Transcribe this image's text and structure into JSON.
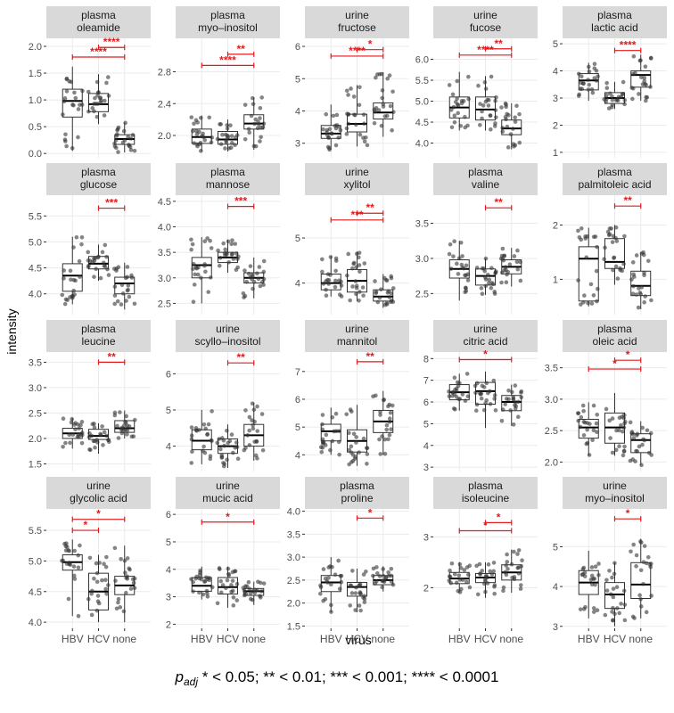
{
  "figure": {
    "ylabel": "intensity",
    "xlabel": "virus",
    "groups": [
      "HBV",
      "HCV",
      "none"
    ],
    "caption": {
      "p": "p",
      "sub": "adj",
      "text": " * < 0.05; ** < 0.01; *** < 0.001; **** < 0.0001"
    }
  },
  "colors": {
    "panel_bg": "#ffffff",
    "strip_bg": "#d9d9d9",
    "grid": "#ebebeb",
    "point": "#333333",
    "sig": "#e31a1c",
    "axis_text": "#4d4d4d"
  },
  "chart_data": [
    {
      "type": "box",
      "title": [
        "plasma",
        "oleamide"
      ],
      "ylim": [
        -0.08,
        2.15
      ],
      "yticks": [
        0.0,
        0.5,
        1.0,
        1.5,
        2.0
      ],
      "ticklabels": [
        "0.0",
        "0.5",
        "1.0",
        "1.5",
        "2.0"
      ],
      "boxes": [
        [
          0.05,
          0.68,
          0.98,
          1.2,
          1.62
        ],
        [
          0.55,
          0.78,
          0.92,
          1.12,
          1.48
        ],
        [
          0.02,
          0.17,
          0.27,
          0.35,
          0.58
        ]
      ],
      "sig": [
        {
          "from": 1,
          "to": 2,
          "y": 1.98,
          "label": "****"
        },
        {
          "from": 0,
          "to": 2,
          "y": 1.8,
          "label": "****"
        }
      ]
    },
    {
      "type": "box",
      "title": [
        "plasma",
        "myo–inositol"
      ],
      "ylim": [
        1.72,
        3.22
      ],
      "yticks": [
        2.0,
        2.4,
        2.8
      ],
      "ticklabels": [
        "2.0",
        "2.4",
        "2.8"
      ],
      "boxes": [
        [
          1.8,
          1.9,
          1.98,
          2.08,
          2.25
        ],
        [
          1.8,
          1.89,
          1.95,
          2.05,
          2.2
        ],
        [
          1.82,
          2.08,
          2.15,
          2.26,
          2.48
        ]
      ],
      "sig": [
        {
          "from": 1,
          "to": 2,
          "y": 3.02,
          "label": "**"
        },
        {
          "from": 0,
          "to": 2,
          "y": 2.88,
          "label": "****"
        }
      ]
    },
    {
      "type": "box",
      "title": [
        "urine",
        "fructose"
      ],
      "ylim": [
        2.55,
        6.25
      ],
      "yticks": [
        3,
        4,
        5,
        6
      ],
      "ticklabels": [
        "3",
        "4",
        "5",
        "6"
      ],
      "boxes": [
        [
          2.8,
          3.15,
          3.3,
          3.55,
          4.2
        ],
        [
          2.9,
          3.35,
          3.6,
          3.9,
          4.8
        ],
        [
          3.2,
          3.75,
          3.95,
          4.25,
          5.2
        ]
      ],
      "sig": [
        {
          "from": 1,
          "to": 2,
          "y": 5.9,
          "label": "*"
        },
        {
          "from": 0,
          "to": 2,
          "y": 5.7,
          "label": "****"
        }
      ]
    },
    {
      "type": "box",
      "title": [
        "urine",
        "fucose"
      ],
      "ylim": [
        3.65,
        6.5
      ],
      "yticks": [
        4.0,
        4.5,
        5.0,
        5.5,
        6.0
      ],
      "ticklabels": [
        "4.0",
        "4.5",
        "5.0",
        "5.5",
        "6.0"
      ],
      "boxes": [
        [
          4.3,
          4.6,
          4.85,
          5.1,
          5.7
        ],
        [
          4.3,
          4.55,
          4.8,
          5.1,
          5.6
        ],
        [
          3.85,
          4.2,
          4.35,
          4.55,
          4.95
        ]
      ],
      "sig": [
        {
          "from": 1,
          "to": 2,
          "y": 6.25,
          "label": "**"
        },
        {
          "from": 0,
          "to": 2,
          "y": 6.1,
          "label": "****"
        }
      ]
    },
    {
      "type": "box",
      "title": [
        "plasma",
        "lactic acid"
      ],
      "ylim": [
        0.8,
        5.2
      ],
      "yticks": [
        1,
        2,
        3,
        4,
        5
      ],
      "ticklabels": [
        "1",
        "2",
        "3",
        "4",
        "5"
      ],
      "boxes": [
        [
          2.9,
          3.3,
          3.65,
          3.9,
          4.3
        ],
        [
          2.6,
          2.8,
          3.0,
          3.2,
          3.6
        ],
        [
          2.9,
          3.4,
          3.85,
          4.0,
          4.6
        ]
      ],
      "sig": [
        {
          "from": 1,
          "to": 2,
          "y": 4.75,
          "label": "****"
        }
      ]
    },
    {
      "type": "box",
      "title": [
        "plasma",
        "glucose"
      ],
      "ylim": [
        3.6,
        5.9
      ],
      "yticks": [
        4.0,
        4.5,
        5.0,
        5.5
      ],
      "ticklabels": [
        "4.0",
        "4.5",
        "5.0",
        "5.5"
      ],
      "boxes": [
        [
          3.8,
          4.05,
          4.35,
          4.58,
          5.1
        ],
        [
          4.25,
          4.48,
          4.58,
          4.72,
          4.95
        ],
        [
          3.7,
          4.0,
          4.2,
          4.32,
          4.6
        ]
      ],
      "sig": [
        {
          "from": 1,
          "to": 2,
          "y": 5.65,
          "label": "***"
        }
      ]
    },
    {
      "type": "box",
      "title": [
        "plasma",
        "mannose"
      ],
      "ylim": [
        2.28,
        4.62
      ],
      "yticks": [
        2.5,
        3.0,
        3.5,
        4.0,
        4.5
      ],
      "ticklabels": [
        "2.5",
        "3.0",
        "3.5",
        "4.0",
        "4.5"
      ],
      "boxes": [
        [
          2.5,
          3.0,
          3.25,
          3.4,
          3.8
        ],
        [
          3.1,
          3.3,
          3.4,
          3.5,
          3.75
        ],
        [
          2.6,
          2.9,
          3.0,
          3.1,
          3.4
        ]
      ],
      "sig": [
        {
          "from": 1,
          "to": 2,
          "y": 4.4,
          "label": "***"
        }
      ]
    },
    {
      "type": "box",
      "title": [
        "urine",
        "xylitol"
      ],
      "ylim": [
        3.3,
        5.95
      ],
      "yticks": [
        4,
        5
      ],
      "ticklabels": [
        "4",
        "5"
      ],
      "boxes": [
        [
          3.7,
          3.85,
          4.0,
          4.2,
          4.6
        ],
        [
          3.6,
          3.8,
          4.05,
          4.3,
          4.7
        ],
        [
          3.45,
          3.6,
          3.7,
          3.85,
          4.2
        ]
      ],
      "sig": [
        {
          "from": 1,
          "to": 2,
          "y": 5.55,
          "label": "**"
        },
        {
          "from": 0,
          "to": 2,
          "y": 5.4,
          "label": "***"
        }
      ]
    },
    {
      "type": "box",
      "title": [
        "plasma",
        "valine"
      ],
      "ylim": [
        2.2,
        3.9
      ],
      "yticks": [
        2.5,
        3.0,
        3.5
      ],
      "ticklabels": [
        "2.5",
        "3.0",
        "3.5"
      ],
      "boxes": [
        [
          2.4,
          2.72,
          2.85,
          2.98,
          3.25
        ],
        [
          2.48,
          2.62,
          2.75,
          2.85,
          3.0
        ],
        [
          2.6,
          2.78,
          2.88,
          2.98,
          3.15
        ]
      ],
      "sig": [
        {
          "from": 1,
          "to": 2,
          "y": 3.72,
          "label": "**"
        }
      ]
    },
    {
      "type": "box",
      "title": [
        "plasma",
        "palmitoleic acid"
      ],
      "ylim": [
        0.35,
        2.55
      ],
      "yticks": [
        1,
        2
      ],
      "ticklabels": [
        "1",
        "2"
      ],
      "boxes": [
        [
          0.5,
          0.6,
          1.38,
          1.6,
          1.95
        ],
        [
          0.9,
          1.2,
          1.32,
          1.75,
          2.0
        ],
        [
          0.45,
          0.7,
          0.88,
          1.15,
          1.5
        ]
      ],
      "sig": [
        {
          "from": 1,
          "to": 2,
          "y": 2.35,
          "label": "**"
        }
      ]
    },
    {
      "type": "box",
      "title": [
        "plasma",
        "leucine"
      ],
      "ylim": [
        1.35,
        3.7
      ],
      "yticks": [
        1.5,
        2.0,
        2.5,
        3.0,
        3.5
      ],
      "ticklabels": [
        "1.5",
        "2.0",
        "2.5",
        "3.0",
        "3.5"
      ],
      "boxes": [
        [
          1.8,
          2.0,
          2.1,
          2.2,
          2.4
        ],
        [
          1.7,
          1.98,
          2.05,
          2.18,
          2.3
        ],
        [
          2.0,
          2.12,
          2.2,
          2.35,
          2.55
        ]
      ],
      "sig": [
        {
          "from": 1,
          "to": 2,
          "y": 3.5,
          "label": "**"
        }
      ]
    },
    {
      "type": "box",
      "title": [
        "urine",
        "scyllo–inositol"
      ],
      "ylim": [
        3.3,
        6.6
      ],
      "yticks": [
        4,
        5,
        6
      ],
      "ticklabels": [
        "4",
        "5",
        "6"
      ],
      "boxes": [
        [
          3.5,
          3.9,
          4.15,
          4.45,
          5.0
        ],
        [
          3.4,
          3.8,
          4.0,
          4.2,
          4.6
        ],
        [
          3.6,
          4.0,
          4.3,
          4.6,
          5.2
        ]
      ],
      "sig": [
        {
          "from": 1,
          "to": 2,
          "y": 6.3,
          "label": "**"
        }
      ]
    },
    {
      "type": "box",
      "title": [
        "urine",
        "mannitol"
      ],
      "ylim": [
        3.4,
        7.7
      ],
      "yticks": [
        4,
        5,
        6,
        7
      ],
      "ticklabels": [
        "4",
        "5",
        "6",
        "7"
      ],
      "boxes": [
        [
          4.0,
          4.5,
          4.85,
          5.1,
          5.7
        ],
        [
          3.6,
          4.1,
          4.5,
          4.9,
          5.8
        ],
        [
          4.0,
          4.8,
          5.2,
          5.6,
          6.3
        ]
      ],
      "sig": [
        {
          "from": 1,
          "to": 2,
          "y": 7.35,
          "label": "**"
        }
      ]
    },
    {
      "type": "box",
      "title": [
        "urine",
        "citric acid"
      ],
      "ylim": [
        2.8,
        8.3
      ],
      "yticks": [
        3,
        4,
        5,
        6,
        7,
        8
      ],
      "ticklabels": [
        "3",
        "4",
        "5",
        "6",
        "7",
        "8"
      ],
      "boxes": [
        [
          5.6,
          6.1,
          6.45,
          6.8,
          7.3
        ],
        [
          4.8,
          5.9,
          6.5,
          6.9,
          7.4
        ],
        [
          4.9,
          5.6,
          6.0,
          6.3,
          6.8
        ]
      ],
      "sig": [
        {
          "from": 0,
          "to": 2,
          "y": 7.95,
          "label": "*"
        }
      ]
    },
    {
      "type": "box",
      "title": [
        "plasma",
        "oleic acid"
      ],
      "ylim": [
        1.85,
        3.75
      ],
      "yticks": [
        2.0,
        2.5,
        3.0,
        3.5
      ],
      "ticklabels": [
        "2.0",
        "2.5",
        "3.0",
        "3.5"
      ],
      "boxes": [
        [
          2.1,
          2.38,
          2.55,
          2.68,
          2.95
        ],
        [
          2.1,
          2.3,
          2.55,
          2.78,
          3.1
        ],
        [
          1.95,
          2.15,
          2.35,
          2.45,
          2.65
        ]
      ],
      "sig": [
        {
          "from": 1,
          "to": 2,
          "y": 3.62,
          "label": "*"
        },
        {
          "from": 0,
          "to": 2,
          "y": 3.48,
          "label": "*"
        }
      ]
    },
    {
      "type": "box",
      "title": [
        "urine",
        "glycolic acid"
      ],
      "ylim": [
        3.9,
        5.85
      ],
      "yticks": [
        4.0,
        4.5,
        5.0,
        5.5
      ],
      "ticklabels": [
        "4.0",
        "4.5",
        "5.0",
        "5.5"
      ],
      "boxes": [
        [
          4.1,
          4.85,
          4.98,
          5.1,
          5.35
        ],
        [
          4.0,
          4.2,
          4.5,
          4.8,
          5.1
        ],
        [
          4.0,
          4.45,
          4.6,
          4.75,
          5.25
        ]
      ],
      "sig": [
        {
          "from": 0,
          "to": 2,
          "y": 5.68,
          "label": "*"
        },
        {
          "from": 0,
          "to": 1,
          "y": 5.5,
          "label": "*"
        }
      ]
    },
    {
      "type": "box",
      "title": [
        "urine",
        "mucic acid"
      ],
      "ylim": [
        1.85,
        6.2
      ],
      "yticks": [
        2,
        3,
        4,
        5,
        6
      ],
      "ticklabels": [
        "2",
        "3",
        "4",
        "5",
        "6"
      ],
      "boxes": [
        [
          2.9,
          3.2,
          3.4,
          3.7,
          4.1
        ],
        [
          2.6,
          3.1,
          3.35,
          3.7,
          4.1
        ],
        [
          2.7,
          3.05,
          3.2,
          3.3,
          3.55
        ]
      ],
      "sig": [
        {
          "from": 0,
          "to": 2,
          "y": 5.72,
          "label": "*"
        }
      ]
    },
    {
      "type": "box",
      "title": [
        "plasma",
        "proline"
      ],
      "ylim": [
        1.45,
        4.05
      ],
      "yticks": [
        1.5,
        2.0,
        2.5,
        3.0,
        3.5,
        4.0
      ],
      "ticklabels": [
        "1.5",
        "2.0",
        "2.5",
        "3.0",
        "3.5",
        "4.0"
      ],
      "boxes": [
        [
          1.8,
          2.25,
          2.45,
          2.6,
          3.0
        ],
        [
          1.8,
          2.15,
          2.35,
          2.45,
          2.75
        ],
        [
          2.25,
          2.4,
          2.5,
          2.6,
          2.8
        ]
      ],
      "sig": [
        {
          "from": 1,
          "to": 2,
          "y": 3.85,
          "label": "*"
        }
      ]
    },
    {
      "type": "box",
      "title": [
        "plasma",
        "isoleucine"
      ],
      "ylim": [
        1.2,
        3.55
      ],
      "yticks": [
        2,
        3
      ],
      "ticklabels": [
        "2",
        "3"
      ],
      "boxes": [
        [
          1.9,
          2.08,
          2.18,
          2.3,
          2.5
        ],
        [
          1.8,
          2.1,
          2.2,
          2.28,
          2.5
        ],
        [
          1.9,
          2.15,
          2.3,
          2.45,
          2.75
        ]
      ],
      "sig": [
        {
          "from": 1,
          "to": 2,
          "y": 3.28,
          "label": "*"
        },
        {
          "from": 0,
          "to": 2,
          "y": 3.12,
          "label": "*"
        }
      ]
    },
    {
      "type": "box",
      "title": [
        "urine",
        "myo–inositol"
      ],
      "ylim": [
        2.95,
        5.95
      ],
      "yticks": [
        3,
        4,
        5
      ],
      "ticklabels": [
        "3",
        "4",
        "5"
      ],
      "boxes": [
        [
          3.2,
          3.8,
          4.1,
          4.4,
          4.9
        ],
        [
          3.0,
          3.45,
          3.8,
          4.1,
          4.6
        ],
        [
          3.2,
          3.7,
          4.05,
          4.6,
          5.2
        ]
      ],
      "sig": [
        {
          "from": 1,
          "to": 2,
          "y": 5.7,
          "label": "*"
        }
      ]
    }
  ]
}
